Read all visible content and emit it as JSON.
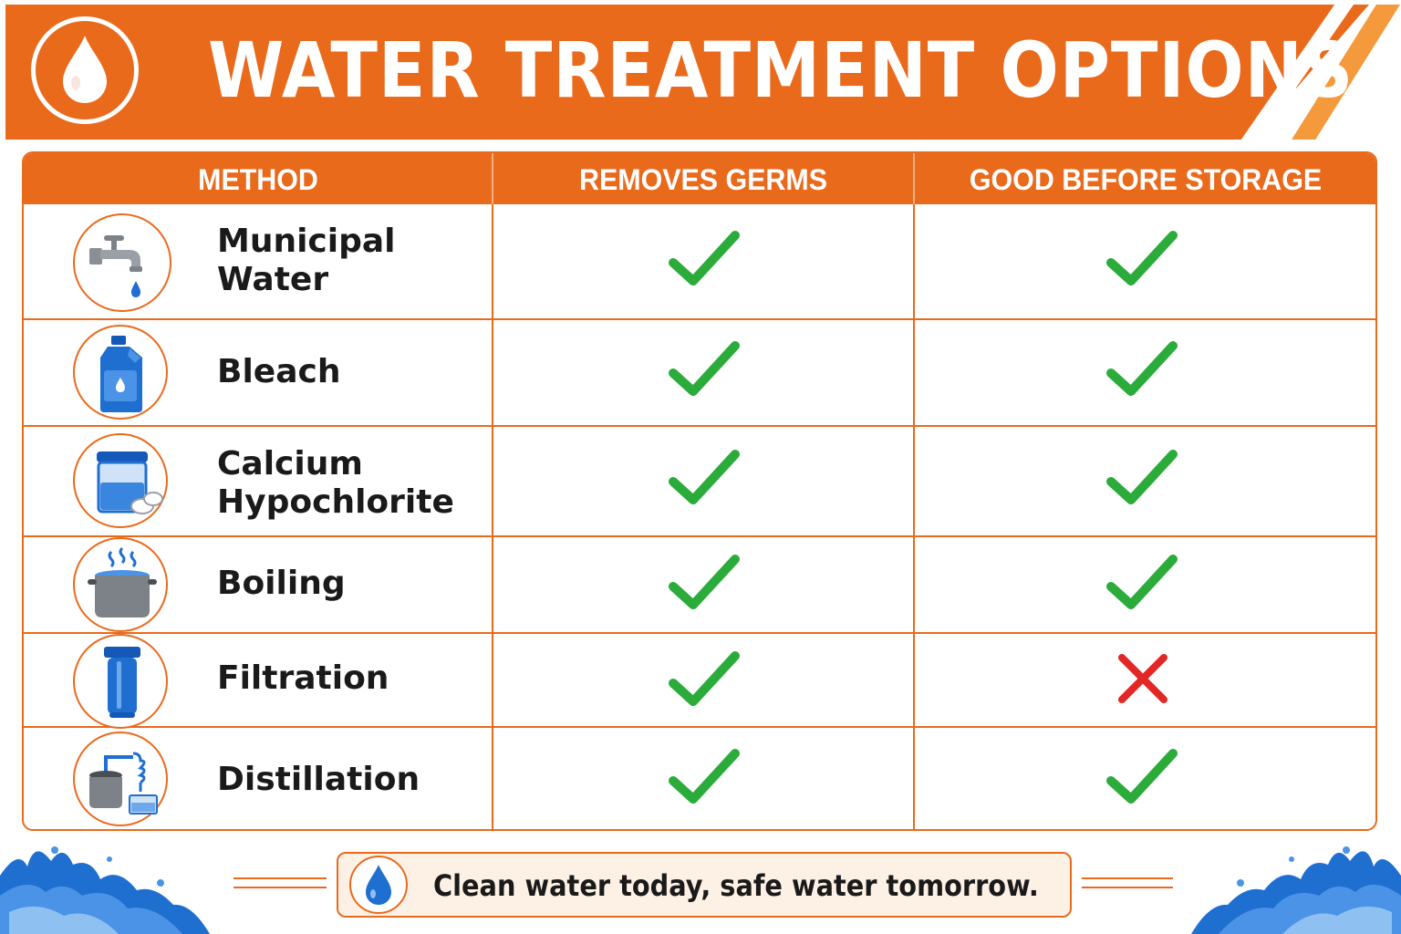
{
  "header": {
    "title": "WATER TREATMENT OPTIONS",
    "logo_icon": "water-drop-icon",
    "background_color": "#ea6a1c"
  },
  "table": {
    "columns": [
      "METHOD",
      "REMOVES GERMS",
      "GOOD BEFORE STORAGE"
    ],
    "rows": [
      {
        "method_line1": "Municipal",
        "method_line2": "Water",
        "icon": "faucet-icon",
        "removes_germs": true,
        "good_before_storage": true
      },
      {
        "method_line1": "Bleach",
        "method_line2": "",
        "icon": "bleach-jug-icon",
        "removes_germs": true,
        "good_before_storage": true
      },
      {
        "method_line1": "Calcium",
        "method_line2": "Hypochlorite",
        "icon": "tablet-container-icon",
        "removes_germs": true,
        "good_before_storage": true
      },
      {
        "method_line1": "Boiling",
        "method_line2": "",
        "icon": "boiling-pot-icon",
        "removes_germs": true,
        "good_before_storage": true
      },
      {
        "method_line1": "Filtration",
        "method_line2": "",
        "icon": "water-filter-icon",
        "removes_germs": true,
        "good_before_storage": false
      },
      {
        "method_line1": "Distillation",
        "method_line2": "",
        "icon": "distiller-icon",
        "removes_germs": true,
        "good_before_storage": true
      }
    ],
    "check_color": "#2bab3a",
    "cross_color": "#e32626"
  },
  "footer": {
    "text": "Clean water today, safe water tomorrow.",
    "icon": "water-drop-icon"
  }
}
